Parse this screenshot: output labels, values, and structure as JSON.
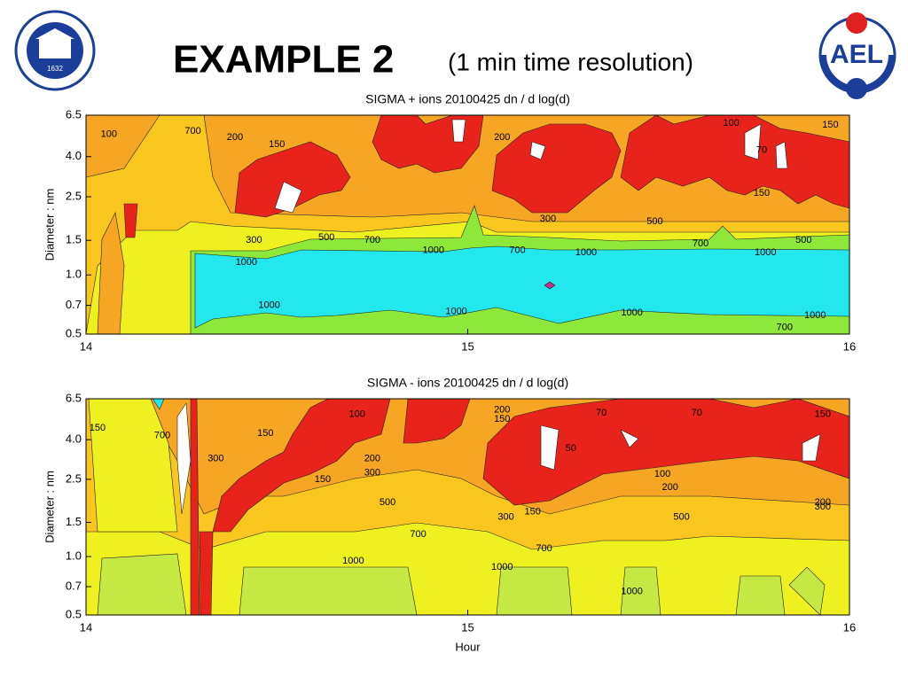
{
  "header": {
    "title": "EXAMPLE 2",
    "subtitle": "(1 min time resolution)",
    "logo_left": "1632",
    "logo_right": "AEL"
  },
  "chart_data": [
    {
      "type": "contour",
      "title": "SIGMA + ions 20100425 dn / d log(d)",
      "ylabel": "Diameter : nm",
      "xlim": [
        14,
        16
      ],
      "xticks": [
        14,
        15,
        16
      ],
      "ylim": [
        0.5,
        6.5
      ],
      "yscale": "log",
      "yticks": [
        0.5,
        0.7,
        {
          "value": 1,
          "label": "1.0"
        },
        1.5,
        2.5,
        {
          "value": 4,
          "label": "4.0"
        },
        6.5
      ],
      "contour_labels": [
        {
          "x": 14.06,
          "y": 5.2,
          "value": 100
        },
        {
          "x": 14.28,
          "y": 5.4,
          "value": 700
        },
        {
          "x": 14.39,
          "y": 5.0,
          "value": 200
        },
        {
          "x": 14.5,
          "y": 4.6,
          "value": 150
        },
        {
          "x": 14.44,
          "y": 1.5,
          "value": 300
        },
        {
          "x": 14.63,
          "y": 1.55,
          "value": 500
        },
        {
          "x": 14.75,
          "y": 1.5,
          "value": 700
        },
        {
          "x": 14.42,
          "y": 1.16,
          "value": 1000
        },
        {
          "x": 14.91,
          "y": 1.33,
          "value": 1000
        },
        {
          "x": 14.48,
          "y": 0.7,
          "value": 1000
        },
        {
          "x": 14.97,
          "y": 0.65,
          "value": 1000
        },
        {
          "x": 15.13,
          "y": 1.33,
          "value": 700
        },
        {
          "x": 15.31,
          "y": 1.3,
          "value": 1000
        },
        {
          "x": 15.43,
          "y": 0.64,
          "value": 1000
        },
        {
          "x": 15.49,
          "y": 1.87,
          "value": 500
        },
        {
          "x": 15.61,
          "y": 1.44,
          "value": 700
        },
        {
          "x": 15.78,
          "y": 1.3,
          "value": 1000
        },
        {
          "x": 15.91,
          "y": 0.62,
          "value": 1000
        },
        {
          "x": 15.83,
          "y": 0.54,
          "value": 700
        },
        {
          "x": 15.88,
          "y": 1.5,
          "value": 500
        },
        {
          "x": 15.21,
          "y": 1.93,
          "value": 300
        },
        {
          "x": 15.69,
          "y": 5.9,
          "value": 100
        },
        {
          "x": 15.95,
          "y": 5.8,
          "value": 150
        },
        {
          "x": 15.77,
          "y": 4.3,
          "value": 70
        },
        {
          "x": 15.77,
          "y": 2.6,
          "value": 150
        },
        {
          "x": 15.09,
          "y": 5.0,
          "value": 200
        }
      ]
    },
    {
      "type": "contour",
      "title": "SIGMA - ions 20100425 dn / d log(d)",
      "ylabel": "Diameter : nm",
      "xlabel": "Hour",
      "xlim": [
        14,
        16
      ],
      "xticks": [
        14,
        15,
        16
      ],
      "ylim": [
        0.5,
        6.5
      ],
      "yscale": "log",
      "yticks": [
        0.5,
        0.7,
        {
          "value": 1,
          "label": "1.0"
        },
        1.5,
        2.5,
        {
          "value": 4,
          "label": "4.0"
        },
        6.5
      ],
      "contour_labels": [
        {
          "x": 14.03,
          "y": 4.6,
          "value": 150
        },
        {
          "x": 14.2,
          "y": 4.2,
          "value": 700
        },
        {
          "x": 14.34,
          "y": 3.2,
          "value": 300
        },
        {
          "x": 14.47,
          "y": 4.3,
          "value": 150
        },
        {
          "x": 14.71,
          "y": 5.4,
          "value": 100
        },
        {
          "x": 14.75,
          "y": 3.2,
          "value": 200
        },
        {
          "x": 14.75,
          "y": 2.7,
          "value": 300
        },
        {
          "x": 14.62,
          "y": 2.5,
          "value": 150
        },
        {
          "x": 14.79,
          "y": 1.9,
          "value": 500
        },
        {
          "x": 14.87,
          "y": 1.3,
          "value": 700
        },
        {
          "x": 14.7,
          "y": 0.95,
          "value": 1000
        },
        {
          "x": 15.09,
          "y": 0.88,
          "value": 1000
        },
        {
          "x": 15.09,
          "y": 5.7,
          "value": 200
        },
        {
          "x": 15.09,
          "y": 5.1,
          "value": 150
        },
        {
          "x": 15.1,
          "y": 1.6,
          "value": 300
        },
        {
          "x": 15.17,
          "y": 1.7,
          "value": 150
        },
        {
          "x": 15.2,
          "y": 1.1,
          "value": 700
        },
        {
          "x": 15.51,
          "y": 2.66,
          "value": 100
        },
        {
          "x": 15.53,
          "y": 2.27,
          "value": 200
        },
        {
          "x": 15.56,
          "y": 1.6,
          "value": 500
        },
        {
          "x": 15.43,
          "y": 0.66,
          "value": 1000
        },
        {
          "x": 15.93,
          "y": 1.9,
          "value": 200
        },
        {
          "x": 15.93,
          "y": 1.8,
          "value": 300
        },
        {
          "x": 15.93,
          "y": 5.4,
          "value": 150
        },
        {
          "x": 15.35,
          "y": 5.5,
          "value": 70
        },
        {
          "x": 15.6,
          "y": 5.5,
          "value": 70
        },
        {
          "x": 15.27,
          "y": 3.6,
          "value": 50
        }
      ]
    }
  ]
}
